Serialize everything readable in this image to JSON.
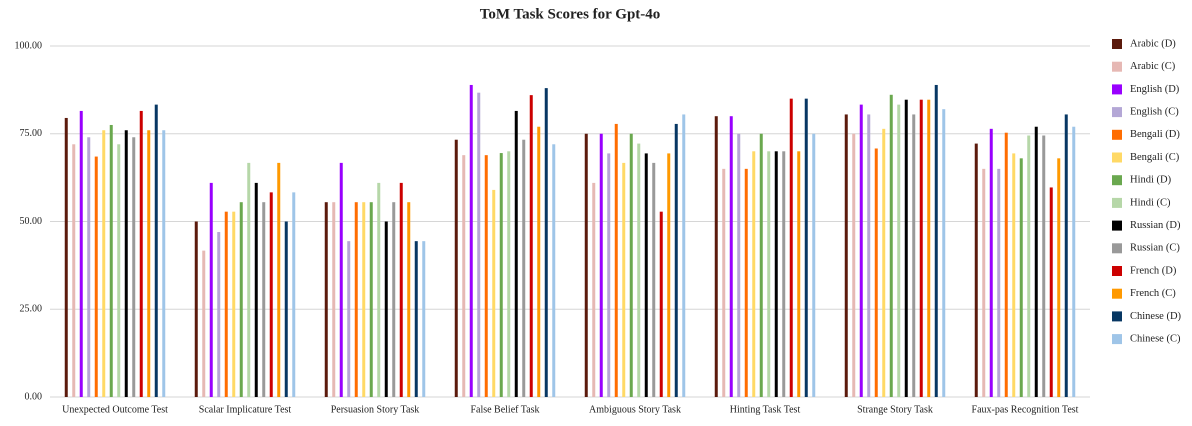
{
  "chart_data": {
    "type": "bar",
    "title": "ToM Task Scores for Gpt-4o",
    "categories": [
      "Unexpected Outcome Test",
      "Scalar Implicature Test",
      "Persuasion Story Task",
      "False Belief Task",
      "Ambiguous Story Task",
      "Hinting Task Test",
      "Strange Story Task",
      "Faux-pas Recognition Test"
    ],
    "series": [
      {
        "name": "Arabic (D)",
        "color": "#5b1a0c",
        "values": [
          79.5,
          50,
          55.5,
          73.3,
          75,
          80,
          80.5,
          72.2
        ]
      },
      {
        "name": "Arabic (C)",
        "color": "#e6b8b4",
        "values": [
          72,
          41.7,
          55.5,
          68.9,
          61,
          65,
          75,
          65
        ]
      },
      {
        "name": "English (D)",
        "color": "#9900ff",
        "values": [
          81.5,
          61,
          66.7,
          88.9,
          75,
          80,
          83.3,
          76.4
        ]
      },
      {
        "name": "English (C)",
        "color": "#b4a7d6",
        "values": [
          74,
          47,
          44.4,
          86.7,
          69.4,
          75,
          80.5,
          65
        ]
      },
      {
        "name": "Bengali (D)",
        "color": "#ff6d01",
        "values": [
          68.5,
          52.8,
          55.5,
          68.9,
          77.8,
          65,
          70.8,
          75.3
        ]
      },
      {
        "name": "Bengali (C)",
        "color": "#ffd966",
        "values": [
          76,
          52.8,
          55.5,
          59,
          66.7,
          70,
          76.4,
          69.4
        ]
      },
      {
        "name": "Hindi (D)",
        "color": "#6aa84f",
        "values": [
          77.5,
          55.5,
          55.5,
          69.5,
          75,
          75,
          86.1,
          68
        ]
      },
      {
        "name": "Hindi (C)",
        "color": "#b6d7a8",
        "values": [
          72,
          66.7,
          61,
          70,
          72.2,
          70,
          83.3,
          74.5
        ]
      },
      {
        "name": "Russian (D)",
        "color": "#000000",
        "values": [
          76,
          61,
          50,
          81.5,
          69.4,
          70,
          84.7,
          77
        ]
      },
      {
        "name": "Russian (C)",
        "color": "#999999",
        "values": [
          74,
          55.5,
          55.5,
          73.3,
          66.7,
          70,
          80.5,
          74.5
        ]
      },
      {
        "name": "French (D)",
        "color": "#cc0000",
        "values": [
          81.5,
          58.3,
          61,
          86,
          52.8,
          85,
          84.7,
          59.7
        ]
      },
      {
        "name": "French (C)",
        "color": "#ff9900",
        "values": [
          76,
          66.7,
          55.5,
          77,
          69.4,
          70,
          84.7,
          68
        ]
      },
      {
        "name": "Chinese (D)",
        "color": "#073763",
        "values": [
          83.3,
          50,
          44.4,
          88,
          77.8,
          85,
          88.9,
          80.5
        ]
      },
      {
        "name": "Chinese (C)",
        "color": "#9fc5e8",
        "values": [
          76,
          58.3,
          44.4,
          72,
          80.5,
          75,
          82,
          77
        ]
      }
    ],
    "ylim": [
      0,
      100
    ],
    "yticks": [
      {
        "value": 0,
        "label": "0.00"
      },
      {
        "value": 25,
        "label": "25.00"
      },
      {
        "value": 50,
        "label": "50.00"
      },
      {
        "value": 75,
        "label": "75.00"
      },
      {
        "value": 100,
        "label": "100.00"
      }
    ],
    "grid": true,
    "legend": "right"
  }
}
